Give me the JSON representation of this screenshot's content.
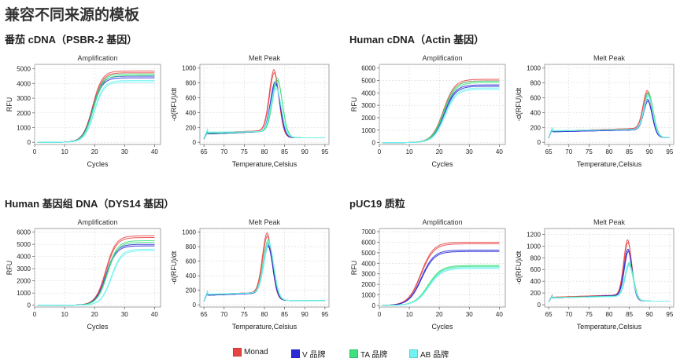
{
  "title": "兼容不同来源的模板",
  "sections": [
    {
      "title": "番茄 cDNA（PSBR-2 基因）"
    },
    {
      "title": "Human cDNA（Actin 基因）"
    },
    {
      "title": "Human 基因组 DNA（DYS14 基因）"
    },
    {
      "title": "pUC19 质粒"
    }
  ],
  "legend": [
    {
      "label": "Monad",
      "color": "#e84545"
    },
    {
      "label": "V 品牌",
      "color": "#2a2ad6"
    },
    {
      "label": "TA 品牌",
      "color": "#3fe07f"
    },
    {
      "label": "AB 品牌",
      "color": "#6ff2f2"
    }
  ],
  "chart_data": [
    {
      "type": "line",
      "title": "Amplification",
      "xlabel": "Cycles",
      "ylabel": "RFU",
      "xlim": [
        0,
        42
      ],
      "ylim": [
        -150,
        5300
      ],
      "xticks": [
        0,
        10,
        20,
        30,
        40
      ],
      "yticks": [
        0,
        1000,
        2000,
        3000,
        4000,
        5000
      ],
      "grid": true,
      "legend_position": "bottom",
      "curves": [
        {
          "name": "Monad",
          "plateau": 4850,
          "midpoint": 19.3,
          "slope": 1.6,
          "count": 2
        },
        {
          "name": "V 品牌",
          "plateau": 4500,
          "midpoint": 19.3,
          "slope": 1.6,
          "count": 2
        },
        {
          "name": "TA 品牌",
          "plateau": 4650,
          "midpoint": 19.5,
          "slope": 1.6,
          "count": 2
        },
        {
          "name": "AB 品牌",
          "plateau": 4200,
          "midpoint": 19.8,
          "slope": 1.6,
          "count": 2
        }
      ]
    },
    {
      "type": "line",
      "title": "Melt Peak",
      "xlabel": "Temperature,Celsius",
      "ylabel": "-d(RFU)/dt",
      "xlim": [
        64,
        96
      ],
      "ylim": [
        -30,
        1050
      ],
      "xticks": [
        65,
        70,
        75,
        80,
        85,
        90,
        95
      ],
      "yticks": [
        0,
        200,
        400,
        600,
        800,
        1000
      ],
      "grid": true,
      "legend_position": "bottom",
      "curves": [
        {
          "name": "Monad",
          "peak_temp": 82.4,
          "peak_height": 980,
          "base_low": 125,
          "base_high": 160,
          "width": 1.2,
          "count": 2
        },
        {
          "name": "V 品牌",
          "peak_temp": 82.7,
          "peak_height": 820,
          "base_low": 110,
          "base_high": 150,
          "width": 1.2,
          "count": 2
        },
        {
          "name": "TA 品牌",
          "peak_temp": 83.2,
          "peak_height": 870,
          "base_low": 120,
          "base_high": 150,
          "width": 1.25,
          "count": 2
        },
        {
          "name": "AB 品牌",
          "peak_temp": 82.9,
          "peak_height": 760,
          "base_low": 135,
          "base_high": 145,
          "width": 1.3,
          "count": 2
        }
      ]
    },
    {
      "type": "line",
      "title": "Amplification",
      "xlabel": "Cycles",
      "ylabel": "RFU",
      "xlim": [
        0,
        42
      ],
      "ylim": [
        -150,
        6300
      ],
      "xticks": [
        0,
        10,
        20,
        30,
        40
      ],
      "yticks": [
        0,
        1000,
        2000,
        3000,
        4000,
        5000,
        6000
      ],
      "grid": true,
      "legend_position": "bottom",
      "curves": [
        {
          "name": "Monad",
          "plateau": 5100,
          "midpoint": 21.3,
          "slope": 1.9,
          "count": 2
        },
        {
          "name": "V 品牌",
          "plateau": 4650,
          "midpoint": 21.5,
          "slope": 1.9,
          "count": 2
        },
        {
          "name": "TA 品牌",
          "plateau": 4950,
          "midpoint": 21.4,
          "slope": 1.9,
          "count": 2
        },
        {
          "name": "AB 品牌",
          "plateau": 4400,
          "midpoint": 21.8,
          "slope": 1.9,
          "count": 2
        }
      ]
    },
    {
      "type": "line",
      "title": "Melt Peak",
      "xlabel": "Temperature,Celsius",
      "ylabel": "-d(RFU)/dt",
      "xlim": [
        64,
        96
      ],
      "ylim": [
        -30,
        1050
      ],
      "xticks": [
        65,
        70,
        75,
        80,
        85,
        90,
        95
      ],
      "yticks": [
        0,
        200,
        400,
        600,
        800,
        1000
      ],
      "grid": true,
      "legend_position": "bottom",
      "curves": [
        {
          "name": "Monad",
          "peak_temp": 89.5,
          "peak_height": 700,
          "base_low": 150,
          "base_high": 190,
          "width": 1.1,
          "count": 2
        },
        {
          "name": "V 品牌",
          "peak_temp": 89.6,
          "peak_height": 580,
          "base_low": 140,
          "base_high": 170,
          "width": 1.1,
          "count": 2
        },
        {
          "name": "TA 品牌",
          "peak_temp": 89.8,
          "peak_height": 680,
          "base_low": 150,
          "base_high": 180,
          "width": 1.15,
          "count": 2
        },
        {
          "name": "AB 品牌",
          "peak_temp": 89.7,
          "peak_height": 640,
          "base_low": 155,
          "base_high": 175,
          "width": 1.15,
          "count": 2
        }
      ]
    },
    {
      "type": "line",
      "title": "Amplification",
      "xlabel": "Cycles",
      "ylabel": "RFU",
      "xlim": [
        0,
        42
      ],
      "ylim": [
        -150,
        6300
      ],
      "xticks": [
        0,
        10,
        20,
        30,
        40
      ],
      "yticks": [
        0,
        1000,
        2000,
        3000,
        4000,
        5000,
        6000
      ],
      "grid": true,
      "legend_position": "bottom",
      "curves": [
        {
          "name": "Monad",
          "plateau": 5700,
          "midpoint": 23.7,
          "slope": 1.7,
          "count": 2
        },
        {
          "name": "V 品牌",
          "plateau": 5000,
          "midpoint": 23.8,
          "slope": 1.7,
          "count": 2
        },
        {
          "name": "TA 品牌",
          "plateau": 5300,
          "midpoint": 24.2,
          "slope": 1.7,
          "count": 2
        },
        {
          "name": "AB 品牌",
          "plateau": 4600,
          "midpoint": 25.5,
          "slope": 1.7,
          "count": 2
        }
      ]
    },
    {
      "type": "line",
      "title": "Melt Peak",
      "xlabel": "Temperature,Celsius",
      "ylabel": "-d(RFU)/dt",
      "xlim": [
        64,
        96
      ],
      "ylim": [
        -30,
        1050
      ],
      "xticks": [
        65,
        70,
        75,
        80,
        85,
        90,
        95
      ],
      "yticks": [
        0,
        200,
        400,
        600,
        800,
        1000
      ],
      "grid": true,
      "legend_position": "bottom",
      "curves": [
        {
          "name": "Monad",
          "peak_temp": 80.7,
          "peak_height": 990,
          "base_low": 140,
          "base_high": 175,
          "width": 1.2,
          "count": 2
        },
        {
          "name": "V 品牌",
          "peak_temp": 80.9,
          "peak_height": 840,
          "base_low": 130,
          "base_high": 165,
          "width": 1.2,
          "count": 2
        },
        {
          "name": "TA 品牌",
          "peak_temp": 81.0,
          "peak_height": 900,
          "base_low": 140,
          "base_high": 170,
          "width": 1.25,
          "count": 2
        },
        {
          "name": "AB 品牌",
          "peak_temp": 81.1,
          "peak_height": 880,
          "base_low": 145,
          "base_high": 170,
          "width": 1.25,
          "count": 2
        }
      ]
    },
    {
      "type": "line",
      "title": "Amplification",
      "xlabel": "Cycles",
      "ylabel": "RFU",
      "xlim": [
        0,
        42
      ],
      "ylim": [
        -150,
        7300
      ],
      "xticks": [
        0,
        10,
        20,
        30,
        40
      ],
      "yticks": [
        0,
        1000,
        2000,
        3000,
        4000,
        5000,
        6000,
        7000
      ],
      "grid": true,
      "legend_position": "bottom",
      "curves": [
        {
          "name": "Monad",
          "plateau": 6000,
          "midpoint": 13.8,
          "slope": 2.1,
          "count": 2
        },
        {
          "name": "V 品牌",
          "plateau": 5250,
          "midpoint": 14.0,
          "slope": 2.1,
          "count": 2
        },
        {
          "name": "TA 品牌",
          "plateau": 3800,
          "midpoint": 16.2,
          "slope": 2.2,
          "count": 2
        },
        {
          "name": "AB 品牌",
          "plateau": 3600,
          "midpoint": 16.4,
          "slope": 2.2,
          "count": 2
        }
      ]
    },
    {
      "type": "line",
      "title": "Melt Peak",
      "xlabel": "Temperature,Celsius",
      "ylabel": "-d(RFU)/dt",
      "xlim": [
        64,
        96
      ],
      "ylim": [
        -40,
        1300
      ],
      "xticks": [
        65,
        70,
        75,
        80,
        85,
        90,
        95
      ],
      "yticks": [
        0,
        200,
        400,
        600,
        800,
        1000,
        1200
      ],
      "grid": true,
      "legend_position": "bottom",
      "curves": [
        {
          "name": "Monad",
          "peak_temp": 84.6,
          "peak_height": 1110,
          "base_low": 125,
          "base_high": 170,
          "width": 1.0,
          "count": 2
        },
        {
          "name": "V 品牌",
          "peak_temp": 84.7,
          "peak_height": 950,
          "base_low": 110,
          "base_high": 165,
          "width": 1.0,
          "count": 2
        },
        {
          "name": "TA 品牌",
          "peak_temp": 85.0,
          "peak_height": 720,
          "base_low": 120,
          "base_high": 150,
          "width": 1.05,
          "count": 2
        },
        {
          "name": "AB 品牌",
          "peak_temp": 84.9,
          "peak_height": 700,
          "base_low": 115,
          "base_high": 145,
          "width": 1.05,
          "count": 2
        }
      ]
    }
  ]
}
